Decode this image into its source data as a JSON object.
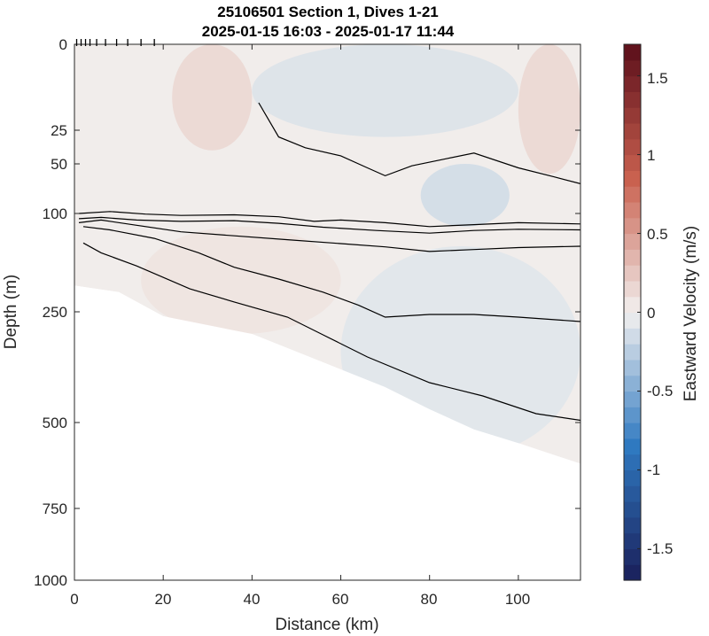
{
  "chart_data": {
    "type": "heatmap",
    "title": "25106501 Section 1, Dives 1-21",
    "subtitle": "2025-01-15 16:03 - 2025-01-17 11:44",
    "xlabel": "Distance (km)",
    "ylabel": "Depth (m)",
    "xlim": [
      0,
      114
    ],
    "x_ticks": [
      "0",
      "20",
      "40",
      "60",
      "80",
      "100"
    ],
    "y_ticks": [
      "0",
      "25",
      "50",
      "100",
      "250",
      "500",
      "750",
      "1000"
    ],
    "y_scale": "nonlinear (stretched upper water column)",
    "colorbar": {
      "label": "Eastward Velocity (m/s)",
      "range": [
        -1.7,
        1.7
      ],
      "ticks": [
        "-1.5",
        "-1",
        "-0.5",
        "0",
        "0.5",
        "1",
        "1.5"
      ],
      "colormap": "blue-white-red diverging",
      "colors": {
        "negative": "#1a1f5a",
        "mid_negative": "#2f79c0",
        "zero": "#f2f0ef",
        "mid_positive": "#c9614f",
        "positive": "#5a0e1a"
      }
    },
    "dive_markers_km": [
      0.5,
      1.5,
      2.5,
      3.5,
      5,
      7,
      9.5,
      12,
      15,
      18
    ],
    "velocity_regions": [
      {
        "value": 0.15,
        "x": [
          22,
          40
        ],
        "depth": [
          0,
          40
        ]
      },
      {
        "value": 0.15,
        "x": [
          100,
          114
        ],
        "depth": [
          0,
          60
        ]
      },
      {
        "value": -0.1,
        "x": [
          40,
          100
        ],
        "depth": [
          0,
          30
        ]
      },
      {
        "value": -0.15,
        "x": [
          78,
          98
        ],
        "depth": [
          50,
          120
        ]
      },
      {
        "value": -0.08,
        "x": [
          60,
          114
        ],
        "depth": [
          150,
          600
        ]
      },
      {
        "value": 0.08,
        "x": [
          15,
          60
        ],
        "depth": [
          120,
          300
        ]
      }
    ],
    "seafloor": [
      [
        0,
        210
      ],
      [
        10,
        220
      ],
      [
        20,
        260
      ],
      [
        30,
        280
      ],
      [
        40,
        300
      ],
      [
        50,
        340
      ],
      [
        60,
        380
      ],
      [
        70,
        420
      ],
      [
        80,
        470
      ],
      [
        90,
        520
      ],
      [
        100,
        560
      ],
      [
        114,
        620
      ]
    ],
    "contours": [
      {
        "points": [
          [
            41.5,
            17
          ],
          [
            46,
            30
          ],
          [
            52,
            38
          ],
          [
            60,
            44
          ],
          [
            66,
            54
          ],
          [
            70,
            62
          ],
          [
            76,
            52
          ],
          [
            84,
            46
          ],
          [
            90,
            42
          ],
          [
            100,
            54
          ],
          [
            108,
            63
          ],
          [
            114,
            70
          ]
        ]
      },
      {
        "points": [
          [
            1,
            100
          ],
          [
            8,
            98
          ],
          [
            16,
            101
          ],
          [
            24,
            103
          ],
          [
            36,
            102
          ],
          [
            46,
            105
          ],
          [
            54,
            112
          ],
          [
            60,
            110
          ],
          [
            70,
            114
          ],
          [
            80,
            120
          ],
          [
            90,
            117
          ],
          [
            100,
            114
          ],
          [
            114,
            116
          ]
        ]
      },
      {
        "points": [
          [
            1,
            108
          ],
          [
            6,
            106
          ],
          [
            14,
            110
          ],
          [
            24,
            112
          ],
          [
            36,
            111
          ],
          [
            46,
            115
          ],
          [
            56,
            121
          ],
          [
            68,
            126
          ],
          [
            80,
            130
          ],
          [
            90,
            126
          ],
          [
            100,
            124
          ],
          [
            114,
            125
          ]
        ]
      },
      {
        "points": [
          [
            1,
            114
          ],
          [
            6,
            110
          ],
          [
            14,
            118
          ],
          [
            24,
            128
          ],
          [
            36,
            134
          ],
          [
            48,
            140
          ],
          [
            60,
            146
          ],
          [
            70,
            151
          ],
          [
            80,
            158
          ],
          [
            90,
            155
          ],
          [
            100,
            152
          ],
          [
            114,
            150
          ]
        ]
      },
      {
        "points": [
          [
            2,
            120
          ],
          [
            8,
            125
          ],
          [
            18,
            138
          ],
          [
            28,
            160
          ],
          [
            36,
            182
          ],
          [
            46,
            200
          ],
          [
            56,
            220
          ],
          [
            64,
            240
          ],
          [
            70,
            262
          ],
          [
            80,
            256
          ],
          [
            90,
            256
          ],
          [
            100,
            262
          ],
          [
            114,
            272
          ]
        ]
      },
      {
        "points": [
          [
            2,
            145
          ],
          [
            6,
            160
          ],
          [
            14,
            180
          ],
          [
            26,
            215
          ],
          [
            36,
            235
          ],
          [
            48,
            262
          ],
          [
            56,
            302
          ],
          [
            66,
            352
          ],
          [
            80,
            410
          ],
          [
            92,
            440
          ],
          [
            104,
            480
          ],
          [
            114,
            495
          ]
        ]
      }
    ]
  }
}
